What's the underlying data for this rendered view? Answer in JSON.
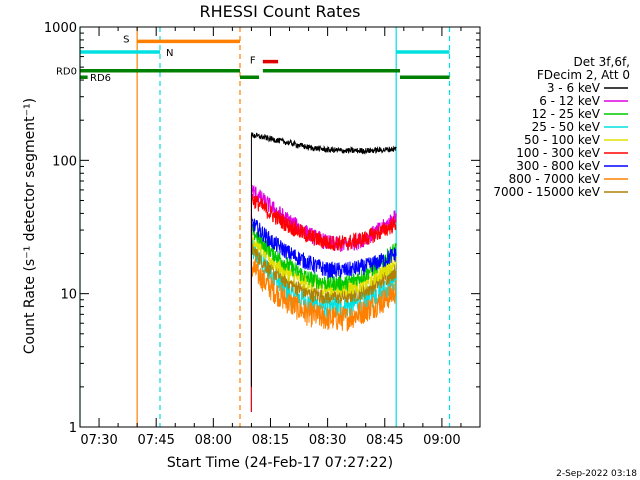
{
  "chart_data": {
    "type": "line",
    "title": "RHESSI Count Rates",
    "xlabel": "Start Time (24-Feb-17 07:27:22)",
    "ylabel": "Count Rate (s⁻¹ detector segment⁻¹)",
    "x_scale": "time",
    "x_range": [
      "07:25",
      "09:10"
    ],
    "x_ticks": [
      "07:30",
      "07:45",
      "08:00",
      "08:15",
      "08:30",
      "08:45",
      "09:00"
    ],
    "y_scale": "log",
    "y_range": [
      1,
      1000
    ],
    "y_ticks": [
      "1",
      "10",
      "100",
      "1000"
    ],
    "legend": {
      "position": "right",
      "header": [
        "Det 3f,6f,",
        "FDecim 2, Att 0"
      ]
    },
    "series": [
      {
        "name": "3 - 6 keV",
        "color": "#000000",
        "x": [
          "08:10",
          "08:15",
          "08:20",
          "08:25",
          "08:30",
          "08:35",
          "08:40",
          "08:45",
          "08:48"
        ],
        "y": [
          155,
          145,
          135,
          125,
          120,
          118,
          118,
          120,
          122
        ]
      },
      {
        "name": "6 - 12 keV",
        "color": "#e000e0",
        "x": [
          "08:10",
          "08:15",
          "08:20",
          "08:25",
          "08:30",
          "08:35",
          "08:40",
          "08:45",
          "08:48"
        ],
        "y": [
          60,
          45,
          35,
          28,
          24,
          23,
          26,
          32,
          38
        ]
      },
      {
        "name": "12 - 25 keV",
        "color": "#00c800",
        "x": [
          "08:10",
          "08:15",
          "08:20",
          "08:25",
          "08:30",
          "08:35",
          "08:40",
          "08:45",
          "08:48"
        ],
        "y": [
          30,
          21,
          16,
          13,
          12,
          12,
          14,
          18,
          22
        ]
      },
      {
        "name": "25 - 50 keV",
        "color": "#00e0e0",
        "x": [
          "08:10",
          "08:15",
          "08:20",
          "08:25",
          "08:30",
          "08:35",
          "08:40",
          "08:45",
          "08:48"
        ],
        "y": [
          22,
          14,
          10,
          8.5,
          8,
          8,
          9,
          11,
          13
        ]
      },
      {
        "name": "50 - 100 keV",
        "color": "#e0e000",
        "x": [
          "08:10",
          "08:15",
          "08:20",
          "08:25",
          "08:30",
          "08:35",
          "08:40",
          "08:45",
          "08:48"
        ],
        "y": [
          27,
          18,
          14,
          12,
          11,
          11,
          12,
          15,
          18
        ]
      },
      {
        "name": "100 - 300 keV",
        "color": "#ff0000",
        "x": [
          "08:10",
          "08:15",
          "08:20",
          "08:25",
          "08:30",
          "08:35",
          "08:40",
          "08:45",
          "08:48"
        ],
        "y": [
          52,
          40,
          32,
          27,
          24,
          24,
          26,
          30,
          34
        ]
      },
      {
        "name": "300 - 800 keV",
        "color": "#0000ff",
        "x": [
          "08:10",
          "08:15",
          "08:20",
          "08:25",
          "08:30",
          "08:35",
          "08:40",
          "08:45",
          "08:48"
        ],
        "y": [
          34,
          25,
          20,
          17,
          15,
          15,
          16,
          18,
          20
        ]
      },
      {
        "name": "800 - 7000 keV",
        "color": "#ff8000",
        "x": [
          "08:10",
          "08:15",
          "08:20",
          "08:25",
          "08:30",
          "08:35",
          "08:40",
          "08:45",
          "08:48"
        ],
        "y": [
          16,
          11,
          8.5,
          7,
          6.5,
          6.5,
          7.5,
          9,
          10.5
        ]
      },
      {
        "name": "7000 - 15000 keV",
        "color": "#b08000",
        "x": [
          "08:10",
          "08:15",
          "08:20",
          "08:25",
          "08:30",
          "08:35",
          "08:40",
          "08:45",
          "08:48"
        ],
        "y": [
          22,
          15,
          12,
          10,
          9.5,
          9.5,
          10.5,
          13,
          15
        ]
      }
    ],
    "flag_bars": [
      {
        "label": "S",
        "color": "#ff8000",
        "y": 780,
        "segments": [
          [
            "07:40",
            "08:07"
          ]
        ]
      },
      {
        "label": "N",
        "color": "#00e0e0",
        "y": 650,
        "segments": [
          [
            "07:25",
            "07:46"
          ],
          [
            "08:48",
            "09:02"
          ]
        ]
      },
      {
        "label": "F",
        "color": "#e00000",
        "y": 550,
        "segments": [
          [
            "08:13",
            "08:17"
          ]
        ]
      },
      {
        "label": "RD0",
        "color": "#008000",
        "y": 470,
        "segments": [
          [
            "07:25",
            "08:07"
          ],
          [
            "08:13",
            "08:49"
          ]
        ]
      },
      {
        "label": "RD6",
        "color": "#008000",
        "y": 420,
        "segments": [
          [
            "07:25",
            "07:27"
          ],
          [
            "08:07",
            "08:12"
          ],
          [
            "08:49",
            "09:02"
          ]
        ]
      }
    ],
    "vertical_lines": [
      {
        "x": "07:25",
        "color": "#00e0e0",
        "style": "solid"
      },
      {
        "x": "07:40",
        "color": "#ff8000",
        "style": "solid"
      },
      {
        "x": "07:46",
        "color": "#00e0e0",
        "style": "dashed"
      },
      {
        "x": "08:07",
        "color": "#ff8000",
        "style": "dashed"
      },
      {
        "x": "08:48",
        "color": "#00e0e0",
        "style": "solid"
      },
      {
        "x": "09:02",
        "color": "#00e0e0",
        "style": "dashed"
      }
    ]
  },
  "footer": {
    "date": "2-Sep-2022 03:18"
  }
}
